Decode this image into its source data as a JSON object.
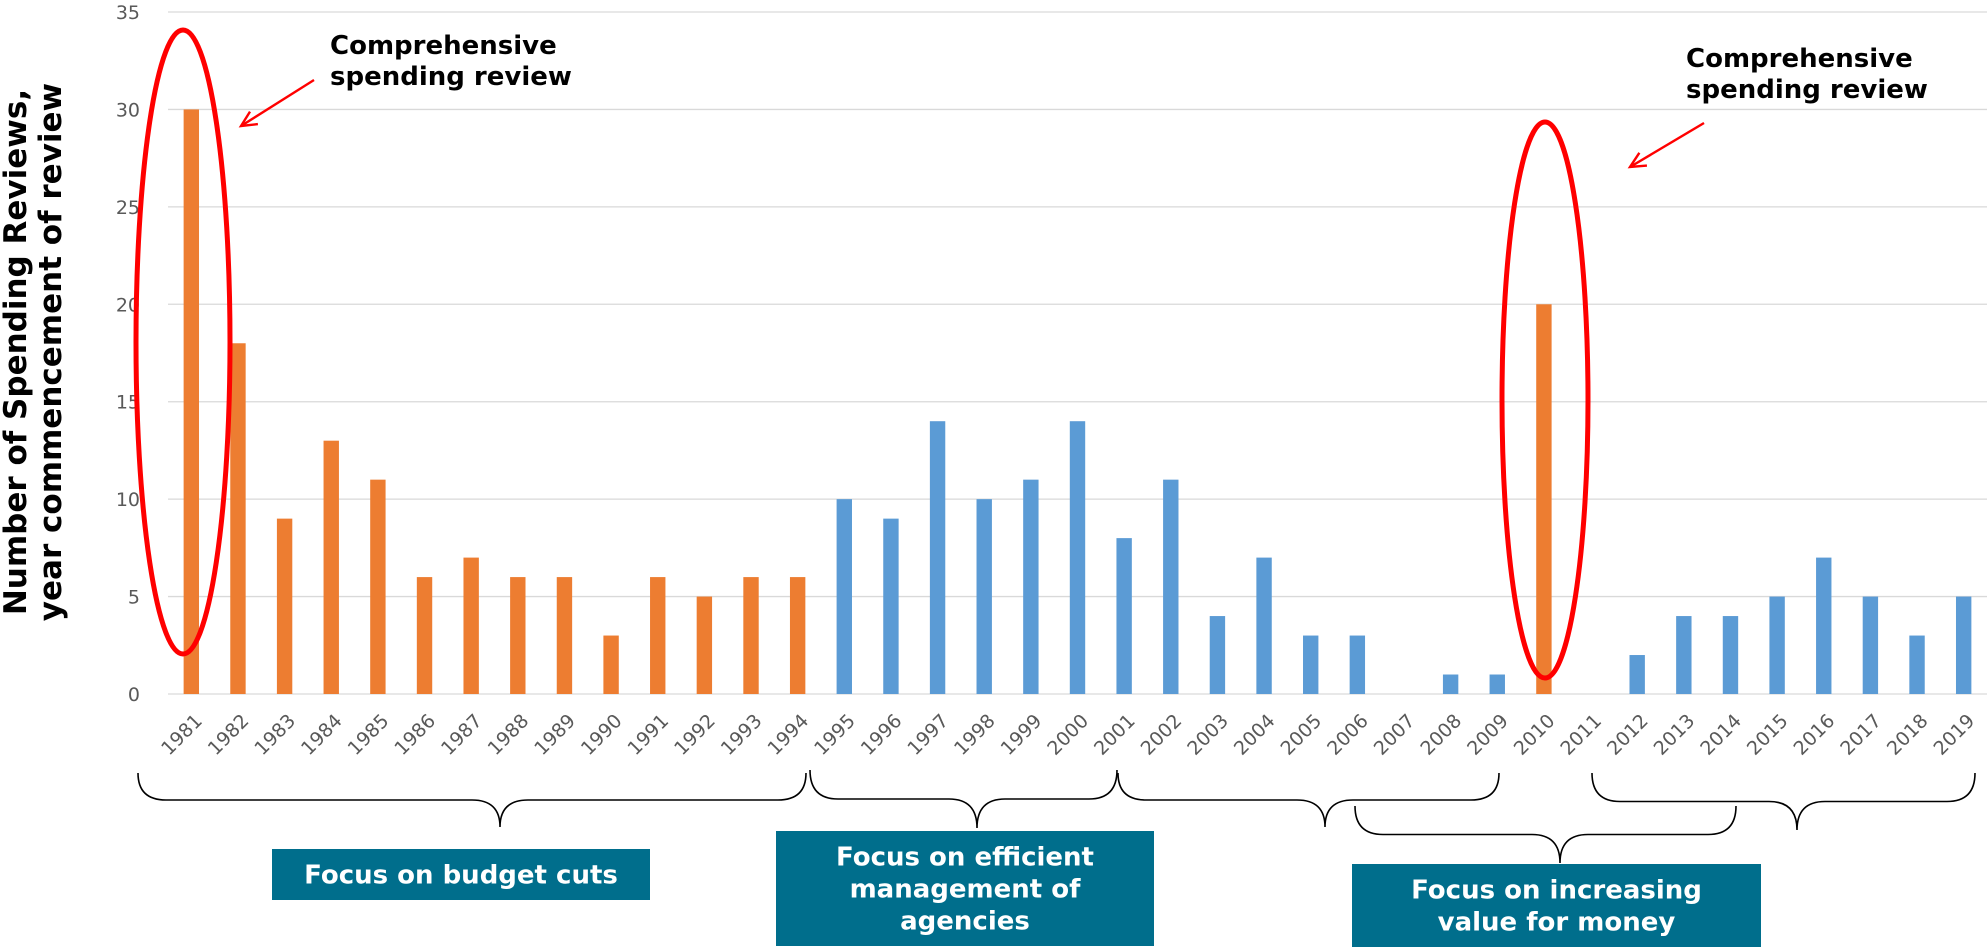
{
  "chart_data": {
    "type": "bar",
    "ylabel": [
      "Number of Spending Reviews,",
      "year commencement of review"
    ],
    "ylim": [
      0,
      35
    ],
    "yticks": [
      0,
      5,
      10,
      15,
      20,
      25,
      30,
      35
    ],
    "grid": true,
    "categories": [
      "1981",
      "1982",
      "1983",
      "1984",
      "1985",
      "1986",
      "1987",
      "1988",
      "1989",
      "1990",
      "1991",
      "1992",
      "1993",
      "1994",
      "1995",
      "1996",
      "1997",
      "1998",
      "1999",
      "2000",
      "2001",
      "2002",
      "2003",
      "2004",
      "2005",
      "2006",
      "2007",
      "2008",
      "2009",
      "2010",
      "2011",
      "2012",
      "2013",
      "2014",
      "2015",
      "2016",
      "2017",
      "2018",
      "2019"
    ],
    "values": [
      30,
      18,
      9,
      13,
      11,
      6,
      7,
      6,
      6,
      3,
      6,
      5,
      6,
      6,
      10,
      9,
      14,
      10,
      11,
      14,
      8,
      11,
      4,
      7,
      3,
      3,
      0,
      1,
      1,
      20,
      0,
      2,
      4,
      4,
      5,
      7,
      5,
      3,
      5
    ],
    "bar_colors": [
      "#ed7d31",
      "#ed7d31",
      "#ed7d31",
      "#ed7d31",
      "#ed7d31",
      "#ed7d31",
      "#ed7d31",
      "#ed7d31",
      "#ed7d31",
      "#ed7d31",
      "#ed7d31",
      "#ed7d31",
      "#ed7d31",
      "#ed7d31",
      "#5b9bd5",
      "#5b9bd5",
      "#5b9bd5",
      "#5b9bd5",
      "#5b9bd5",
      "#5b9bd5",
      "#5b9bd5",
      "#5b9bd5",
      "#5b9bd5",
      "#5b9bd5",
      "#5b9bd5",
      "#5b9bd5",
      "#5b9bd5",
      "#5b9bd5",
      "#5b9bd5",
      "#ed7d31",
      "#5b9bd5",
      "#5b9bd5",
      "#5b9bd5",
      "#5b9bd5",
      "#5b9bd5",
      "#5b9bd5",
      "#5b9bd5",
      "#5b9bd5",
      "#5b9bd5"
    ],
    "highlights": [
      {
        "category": "1981",
        "label": [
          "Comprehensive",
          "spending review"
        ]
      },
      {
        "category": "2010",
        "label": [
          "Comprehensive",
          "spending review"
        ]
      }
    ],
    "periods": [
      {
        "label": [
          "Focus on budget cuts"
        ],
        "from": "1981",
        "to": "1994"
      },
      {
        "label": [
          "Focus on efficient",
          "management of",
          "agencies"
        ],
        "from": "1995",
        "to": "2001"
      },
      {
        "label": [
          "Focus on increasing",
          "value for money"
        ],
        "from": "2001",
        "to": "2019"
      }
    ]
  },
  "colors": {
    "orange": "#ed7d31",
    "blue": "#5b9bd5",
    "box": "#006e8c",
    "highlight": "#ff0000"
  }
}
